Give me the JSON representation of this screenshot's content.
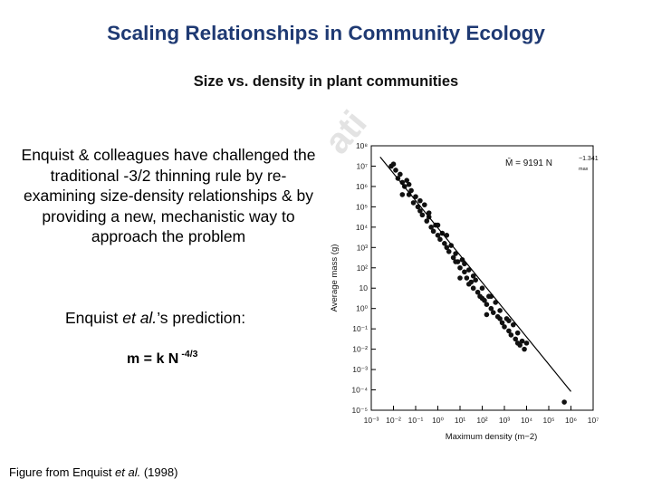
{
  "slide": {
    "title": "Scaling Relationships in Community Ecology",
    "subtitle": "Size vs. density in plant communities",
    "paragraph": "Enquist & colleagues have challenged the traditional -3/2 thinning rule by re-examining size-density relationships & by providing a new, mechanistic way to approach the problem",
    "prediction_prefix": "Enquist ",
    "prediction_etal": "et al.",
    "prediction_suffix": "’s prediction:",
    "formula_base": "m = k N",
    "formula_exponent": "-4/3",
    "credit_prefix": "Figure from Enquist ",
    "credit_etal": "et al.",
    "credit_suffix": " (1998)",
    "watermark": "ati"
  },
  "chart_data": {
    "type": "scatter",
    "xlabel": "Maximum density (m−2)",
    "ylabel": "Average mass (g)",
    "annotation": "M̄ = 9191 N",
    "annotation_exponent": "−1.341",
    "annotation_subscript": "max",
    "x_scale": "log",
    "y_scale": "log",
    "xlim": [
      -3,
      7
    ],
    "ylim": [
      -5,
      8
    ],
    "x_ticks": [
      "10⁻³",
      "10⁻²",
      "10⁻¹",
      "10⁰",
      "10¹",
      "10²",
      "10³",
      "10⁴",
      "10⁵",
      "10⁶",
      "10⁷"
    ],
    "y_ticks": [
      "10⁻⁵",
      "10⁻⁴",
      "10⁻³",
      "10⁻²",
      "10⁻¹",
      "10⁰",
      "10",
      "10²",
      "10³",
      "10⁴",
      "10⁵",
      "10⁶",
      "10⁷",
      "10⁸"
    ],
    "fit_line": {
      "intercept_log10": 3.963,
      "slope": -1.341
    },
    "points_log10": [
      [
        -2.1,
        7.0
      ],
      [
        -2.0,
        7.1
      ],
      [
        -1.9,
        6.8
      ],
      [
        -1.8,
        6.4
      ],
      [
        -1.7,
        6.6
      ],
      [
        -1.6,
        6.2
      ],
      [
        -1.5,
        6.0
      ],
      [
        -1.4,
        6.3
      ],
      [
        -1.3,
        5.6
      ],
      [
        -1.2,
        5.8
      ],
      [
        -1.1,
        5.2
      ],
      [
        -1.0,
        5.5
      ],
      [
        -0.9,
        5.0
      ],
      [
        -0.8,
        4.8
      ],
      [
        -0.7,
        4.6
      ],
      [
        -0.6,
        5.1
      ],
      [
        -0.5,
        4.3
      ],
      [
        -0.4,
        4.5
      ],
      [
        -0.3,
        4.0
      ],
      [
        -0.2,
        3.8
      ],
      [
        -0.1,
        4.1
      ],
      [
        0.0,
        3.6
      ],
      [
        0.1,
        3.4
      ],
      [
        0.2,
        3.7
      ],
      [
        0.3,
        3.2
      ],
      [
        0.4,
        3.0
      ],
      [
        0.5,
        2.8
      ],
      [
        0.6,
        3.1
      ],
      [
        0.7,
        2.5
      ],
      [
        0.8,
        2.7
      ],
      [
        0.9,
        2.3
      ],
      [
        1.0,
        2.0
      ],
      [
        1.1,
        2.4
      ],
      [
        1.2,
        1.8
      ],
      [
        1.3,
        1.5
      ],
      [
        1.4,
        1.9
      ],
      [
        1.5,
        1.3
      ],
      [
        1.6,
        1.0
      ],
      [
        1.7,
        1.4
      ],
      [
        1.8,
        0.8
      ],
      [
        1.9,
        0.6
      ],
      [
        2.0,
        1.0
      ],
      [
        2.1,
        0.4
      ],
      [
        2.2,
        0.2
      ],
      [
        2.3,
        0.6
      ],
      [
        2.4,
        0.0
      ],
      [
        2.5,
        -0.2
      ],
      [
        2.6,
        0.3
      ],
      [
        2.7,
        -0.4
      ],
      [
        2.8,
        -0.1
      ],
      [
        2.9,
        -0.7
      ],
      [
        3.0,
        -0.9
      ],
      [
        3.1,
        -0.5
      ],
      [
        3.2,
        -1.1
      ],
      [
        3.3,
        -1.3
      ],
      [
        3.4,
        -0.8
      ],
      [
        3.5,
        -1.5
      ],
      [
        3.6,
        -1.2
      ],
      [
        3.7,
        -1.8
      ],
      [
        3.8,
        -1.6
      ],
      [
        3.9,
        -2.0
      ],
      [
        4.0,
        -1.7
      ],
      [
        -1.6,
        5.6
      ],
      [
        -1.3,
        6.1
      ],
      [
        -0.8,
        5.3
      ],
      [
        -0.4,
        4.7
      ],
      [
        0.0,
        4.1
      ],
      [
        0.4,
        3.6
      ],
      [
        0.8,
        2.3
      ],
      [
        1.2,
        2.2
      ],
      [
        1.6,
        1.6
      ],
      [
        2.0,
        0.5
      ],
      [
        2.4,
        0.6
      ],
      [
        2.8,
        -0.5
      ],
      [
        3.2,
        -0.6
      ],
      [
        3.6,
        -1.7
      ],
      [
        1.0,
        1.5
      ],
      [
        1.4,
        1.2
      ],
      [
        2.2,
        -0.3
      ],
      [
        5.7,
        -4.6
      ]
    ]
  }
}
